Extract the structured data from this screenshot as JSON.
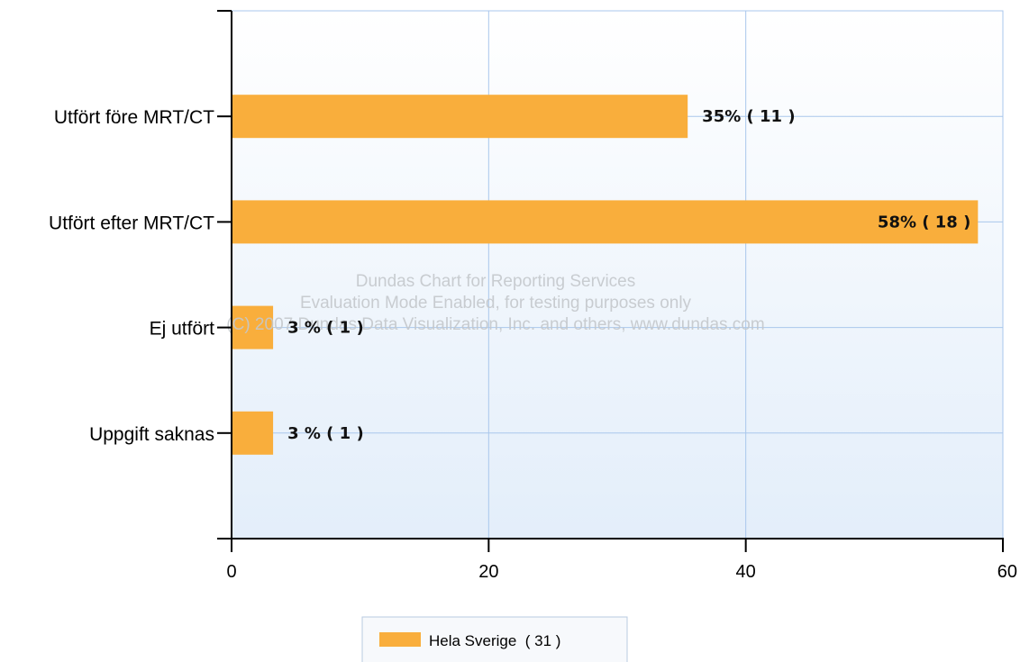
{
  "chart_data": {
    "type": "bar",
    "orientation": "horizontal",
    "categories": [
      "Utfört före MRT/CT",
      "Utfört efter MRT/CT",
      "Ej utfört",
      "Uppgift saknas"
    ],
    "series": [
      {
        "name": "Hela Sverige  ( 31 )",
        "color": "#F9AE3C",
        "values": [
          35.48,
          58.06,
          3.23,
          3.23
        ],
        "labels": [
          "35% ( 11 )",
          "58% ( 18 )",
          "3 % ( 1 )",
          "3 % ( 1 )"
        ]
      }
    ],
    "xlim": [
      0,
      60
    ],
    "xticks": [
      "0",
      "20",
      "40",
      "60"
    ],
    "grid": true,
    "legend": "bottom-center",
    "watermark": [
      "Dundas Chart for Reporting Services",
      "Evaluation Mode Enabled, for testing purposes only",
      "(C) 2007 Dundas Data Visualization, Inc. and others, www.dundas.com"
    ],
    "colors": {
      "bar": "#F9AE3C",
      "grid": "#A9C7EC",
      "plot_top": "#FFFFFF",
      "plot_bottom": "#E3EEFA"
    }
  }
}
